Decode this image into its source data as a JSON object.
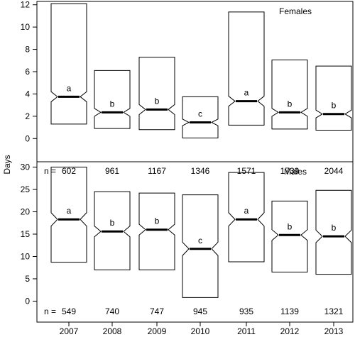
{
  "chart_data": [
    {
      "type": "box",
      "panel_label": "Females",
      "categories": [
        "2007",
        "2008",
        "2009",
        "2010",
        "2011",
        "2012",
        "2013"
      ],
      "ylabel": "Days",
      "ylim": [
        -0.3,
        12.3
      ],
      "yticks": [
        0,
        2,
        4,
        6,
        8,
        10,
        12
      ],
      "n_prefix": "n =",
      "n": [
        "602",
        "961",
        "1167",
        "1346",
        "1571",
        "1739",
        "2044"
      ],
      "letters": [
        "a",
        "b",
        "b",
        "c",
        "a",
        "b",
        "b"
      ],
      "boxes": [
        {
          "q1": 1.3,
          "median": 3.75,
          "q3": 12.1,
          "notch_low": 3.3,
          "notch_high": 4.2
        },
        {
          "q1": 0.9,
          "median": 2.35,
          "q3": 6.1,
          "notch_low": 2.0,
          "notch_high": 2.7
        },
        {
          "q1": 0.8,
          "median": 2.6,
          "q3": 7.3,
          "notch_low": 2.15,
          "notch_high": 3.05
        },
        {
          "q1": 0.05,
          "median": 1.45,
          "q3": 3.75,
          "notch_low": 1.15,
          "notch_high": 1.75
        },
        {
          "q1": 1.2,
          "median": 3.35,
          "q3": 11.35,
          "notch_low": 2.9,
          "notch_high": 3.8
        },
        {
          "q1": 0.85,
          "median": 2.35,
          "q3": 7.05,
          "notch_low": 2.0,
          "notch_high": 2.7
        },
        {
          "q1": 0.75,
          "median": 2.2,
          "q3": 6.5,
          "notch_low": 1.85,
          "notch_high": 2.55
        }
      ]
    },
    {
      "type": "box",
      "panel_label": "Males",
      "categories": [
        "2007",
        "2008",
        "2009",
        "2010",
        "2011",
        "2012",
        "2013"
      ],
      "ylabel": "Days",
      "ylim": [
        -1.2,
        31.2
      ],
      "yticks": [
        0,
        5,
        10,
        15,
        20,
        25,
        30
      ],
      "n_prefix": "n =",
      "n": [
        "549",
        "740",
        "747",
        "945",
        "935",
        "1139",
        "1321"
      ],
      "letters": [
        "a",
        "b",
        "b",
        "c",
        "a",
        "b",
        "b"
      ],
      "boxes": [
        {
          "q1": 8.7,
          "median": 18.3,
          "q3": 30.0,
          "notch_low": 16.8,
          "notch_high": 19.8
        },
        {
          "q1": 7.0,
          "median": 15.6,
          "q3": 24.5,
          "notch_low": 14.4,
          "notch_high": 16.8
        },
        {
          "q1": 7.0,
          "median": 16.0,
          "q3": 24.2,
          "notch_low": 14.8,
          "notch_high": 17.2
        },
        {
          "q1": 0.8,
          "median": 11.7,
          "q3": 23.8,
          "notch_low": 10.2,
          "notch_high": 13.2
        },
        {
          "q1": 8.8,
          "median": 18.3,
          "q3": 28.8,
          "notch_low": 16.8,
          "notch_high": 19.8
        },
        {
          "q1": 6.5,
          "median": 14.8,
          "q3": 22.4,
          "notch_low": 13.6,
          "notch_high": 16.0
        },
        {
          "q1": 6.0,
          "median": 14.5,
          "q3": 24.8,
          "notch_low": 13.1,
          "notch_high": 15.9
        }
      ]
    }
  ],
  "xticks": [
    "2007",
    "2008",
    "2009",
    "2010",
    "2011",
    "2012",
    "2013"
  ]
}
